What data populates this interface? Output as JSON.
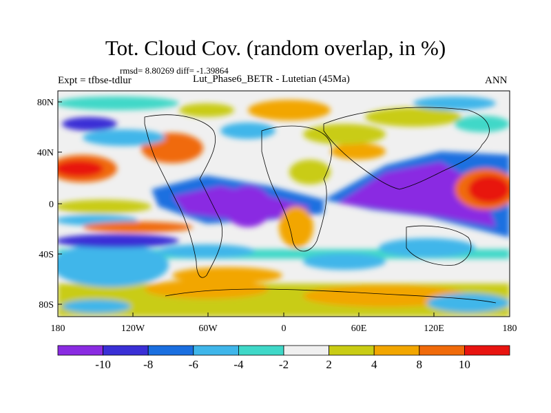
{
  "title": "Tot. Cloud Cov. (random overlap, in %)",
  "stats": "rmsd= 8.80269 diff= -1.39864",
  "expt": "Expt = tfbse-tdlur",
  "subtitle": "Lut_Phase6_BETR - Lutetian (45Ma)",
  "season": "ANN",
  "axes": {
    "y_labels": [
      "80N",
      "40N",
      "0",
      "40S",
      "80S"
    ],
    "x_labels": [
      "180",
      "120W",
      "60W",
      "0",
      "60E",
      "120E",
      "180"
    ]
  },
  "colorbar": {
    "colors": [
      "#8a2be2",
      "#3a2fd6",
      "#1a6fe0",
      "#3fb6ea",
      "#3fd8c8",
      "#f0f0f0",
      "#c9cc14",
      "#f2a600",
      "#f06a0a",
      "#e81410"
    ],
    "labels": [
      "-10",
      "-8",
      "-6",
      "-4",
      "-2",
      "2",
      "4",
      "8",
      "10"
    ]
  },
  "palette": {
    "neutral": "#f0f0f0",
    "land": "#000000"
  }
}
